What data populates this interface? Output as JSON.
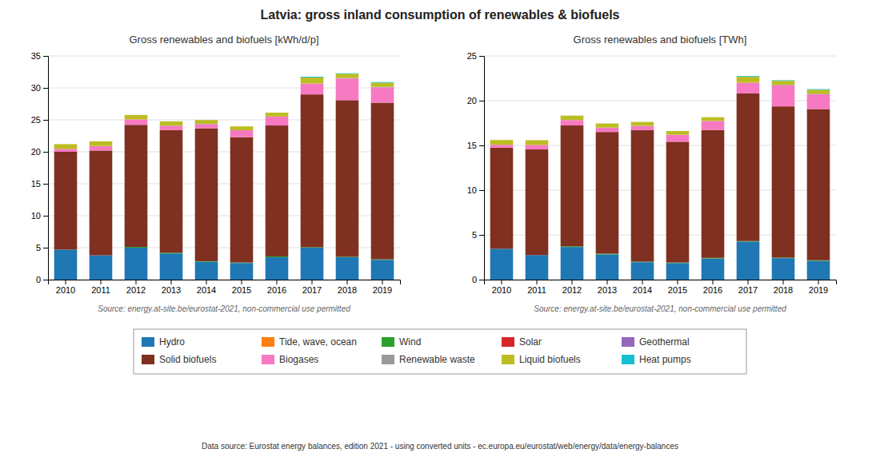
{
  "title": "Latvia: gross inland consumption of renewables & biofuels",
  "annotations": [
    "Data source: Eurostat energy balances, edition 2021 - using converted units - ec.europa.eu/eurostat/web/energy/data/energy-balances"
  ],
  "chart_data": [
    {
      "type": "bar",
      "stacked": true,
      "title": "Gross renewables and biofuels [kWh/d/p]",
      "annotations": [
        "Source: energy.at-site.be/eurostat-2021, non-commercial use permitted"
      ],
      "categories": [
        2010,
        2011,
        2012,
        2013,
        2014,
        2015,
        2016,
        2017,
        2018,
        2019
      ],
      "series": [
        {
          "name": "Hydro",
          "color": "#1f77b4",
          "values": [
            4.7,
            3.8,
            5.0,
            4.1,
            2.8,
            2.6,
            3.5,
            5.0,
            3.5,
            3.1
          ]
        },
        {
          "name": "Tide, wave, ocean",
          "color": "#ff7f0e",
          "values": [
            0.0,
            0.0,
            0.0,
            0.0,
            0.0,
            0.0,
            0.0,
            0.0,
            0.0,
            0.0
          ]
        },
        {
          "name": "Wind",
          "color": "#2ca02c",
          "values": [
            0.0,
            0.0,
            0.12,
            0.12,
            0.08,
            0.08,
            0.12,
            0.08,
            0.08,
            0.08
          ]
        },
        {
          "name": "Solar",
          "color": "#d62728",
          "values": [
            0.0,
            0.0,
            0.0,
            0.0,
            0.0,
            0.0,
            0.0,
            0.0,
            0.0,
            0.0
          ]
        },
        {
          "name": "Geothermal",
          "color": "#9467bd",
          "values": [
            0.0,
            0.0,
            0.0,
            0.0,
            0.0,
            0.0,
            0.0,
            0.0,
            0.0,
            0.0
          ]
        },
        {
          "name": "Solid biofuels",
          "color": "#7f3020",
          "values": [
            15.3,
            16.4,
            19.1,
            19.2,
            20.8,
            19.6,
            20.5,
            23.9,
            24.5,
            24.5
          ]
        },
        {
          "name": "Biogases",
          "color": "#f779c1",
          "values": [
            0.45,
            0.7,
            0.85,
            0.65,
            0.65,
            1.1,
            1.4,
            1.7,
            3.4,
            2.4
          ]
        },
        {
          "name": "Renewable waste",
          "color": "#999999",
          "values": [
            0.0,
            0.0,
            0.0,
            0.04,
            0.04,
            0.0,
            0.0,
            0.0,
            0.08,
            0.08
          ]
        },
        {
          "name": "Liquid biofuels",
          "color": "#bcbd22",
          "values": [
            0.75,
            0.75,
            0.7,
            0.65,
            0.6,
            0.6,
            0.6,
            0.95,
            0.65,
            0.65
          ]
        },
        {
          "name": "Heat pumps",
          "color": "#17becf",
          "values": [
            0.0,
            0.0,
            0.0,
            0.0,
            0.0,
            0.0,
            0.0,
            0.12,
            0.08,
            0.1
          ]
        }
      ],
      "ylim": [
        0,
        35
      ],
      "yticks": [
        0,
        5,
        10,
        15,
        20,
        25,
        30,
        35
      ],
      "grid": true,
      "legend": "bottom"
    },
    {
      "type": "bar",
      "stacked": true,
      "title": "Gross renewables and biofuels [TWh]",
      "annotations": [
        "Source: energy.at-site.be/eurostat-2021, non-commercial use permitted"
      ],
      "categories": [
        2010,
        2011,
        2012,
        2013,
        2014,
        2015,
        2016,
        2017,
        2018,
        2019
      ],
      "series": [
        {
          "name": "Hydro",
          "color": "#1f77b4",
          "values": [
            3.45,
            2.75,
            3.65,
            2.82,
            1.95,
            1.85,
            2.35,
            4.25,
            2.4,
            2.1
          ]
        },
        {
          "name": "Tide, wave, ocean",
          "color": "#ff7f0e",
          "values": [
            0.0,
            0.0,
            0.0,
            0.0,
            0.0,
            0.0,
            0.0,
            0.0,
            0.0,
            0.0
          ]
        },
        {
          "name": "Wind",
          "color": "#2ca02c",
          "values": [
            0.0,
            0.0,
            0.08,
            0.08,
            0.06,
            0.06,
            0.08,
            0.06,
            0.06,
            0.06
          ]
        },
        {
          "name": "Solar",
          "color": "#d62728",
          "values": [
            0.0,
            0.0,
            0.0,
            0.0,
            0.0,
            0.0,
            0.0,
            0.0,
            0.0,
            0.0
          ]
        },
        {
          "name": "Geothermal",
          "color": "#9467bd",
          "values": [
            0.0,
            0.0,
            0.0,
            0.0,
            0.0,
            0.0,
            0.0,
            0.0,
            0.0,
            0.0
          ]
        },
        {
          "name": "Solid biofuels",
          "color": "#7f3020",
          "values": [
            11.3,
            11.8,
            13.5,
            13.6,
            14.7,
            13.5,
            14.3,
            16.5,
            16.9,
            16.9
          ]
        },
        {
          "name": "Biogases",
          "color": "#f779c1",
          "values": [
            0.32,
            0.5,
            0.6,
            0.46,
            0.46,
            0.78,
            1.0,
            1.2,
            2.35,
            1.65
          ]
        },
        {
          "name": "Renewable waste",
          "color": "#999999",
          "values": [
            0.0,
            0.0,
            0.0,
            0.03,
            0.03,
            0.0,
            0.0,
            0.0,
            0.06,
            0.06
          ]
        },
        {
          "name": "Liquid biofuels",
          "color": "#bcbd22",
          "values": [
            0.53,
            0.53,
            0.5,
            0.46,
            0.42,
            0.42,
            0.42,
            0.66,
            0.45,
            0.45
          ]
        },
        {
          "name": "Heat pumps",
          "color": "#17becf",
          "values": [
            0.0,
            0.0,
            0.0,
            0.0,
            0.0,
            0.0,
            0.0,
            0.08,
            0.06,
            0.07
          ]
        }
      ],
      "ylim": [
        0,
        25
      ],
      "yticks": [
        0,
        5,
        10,
        15,
        20,
        25
      ],
      "grid": true
    }
  ]
}
